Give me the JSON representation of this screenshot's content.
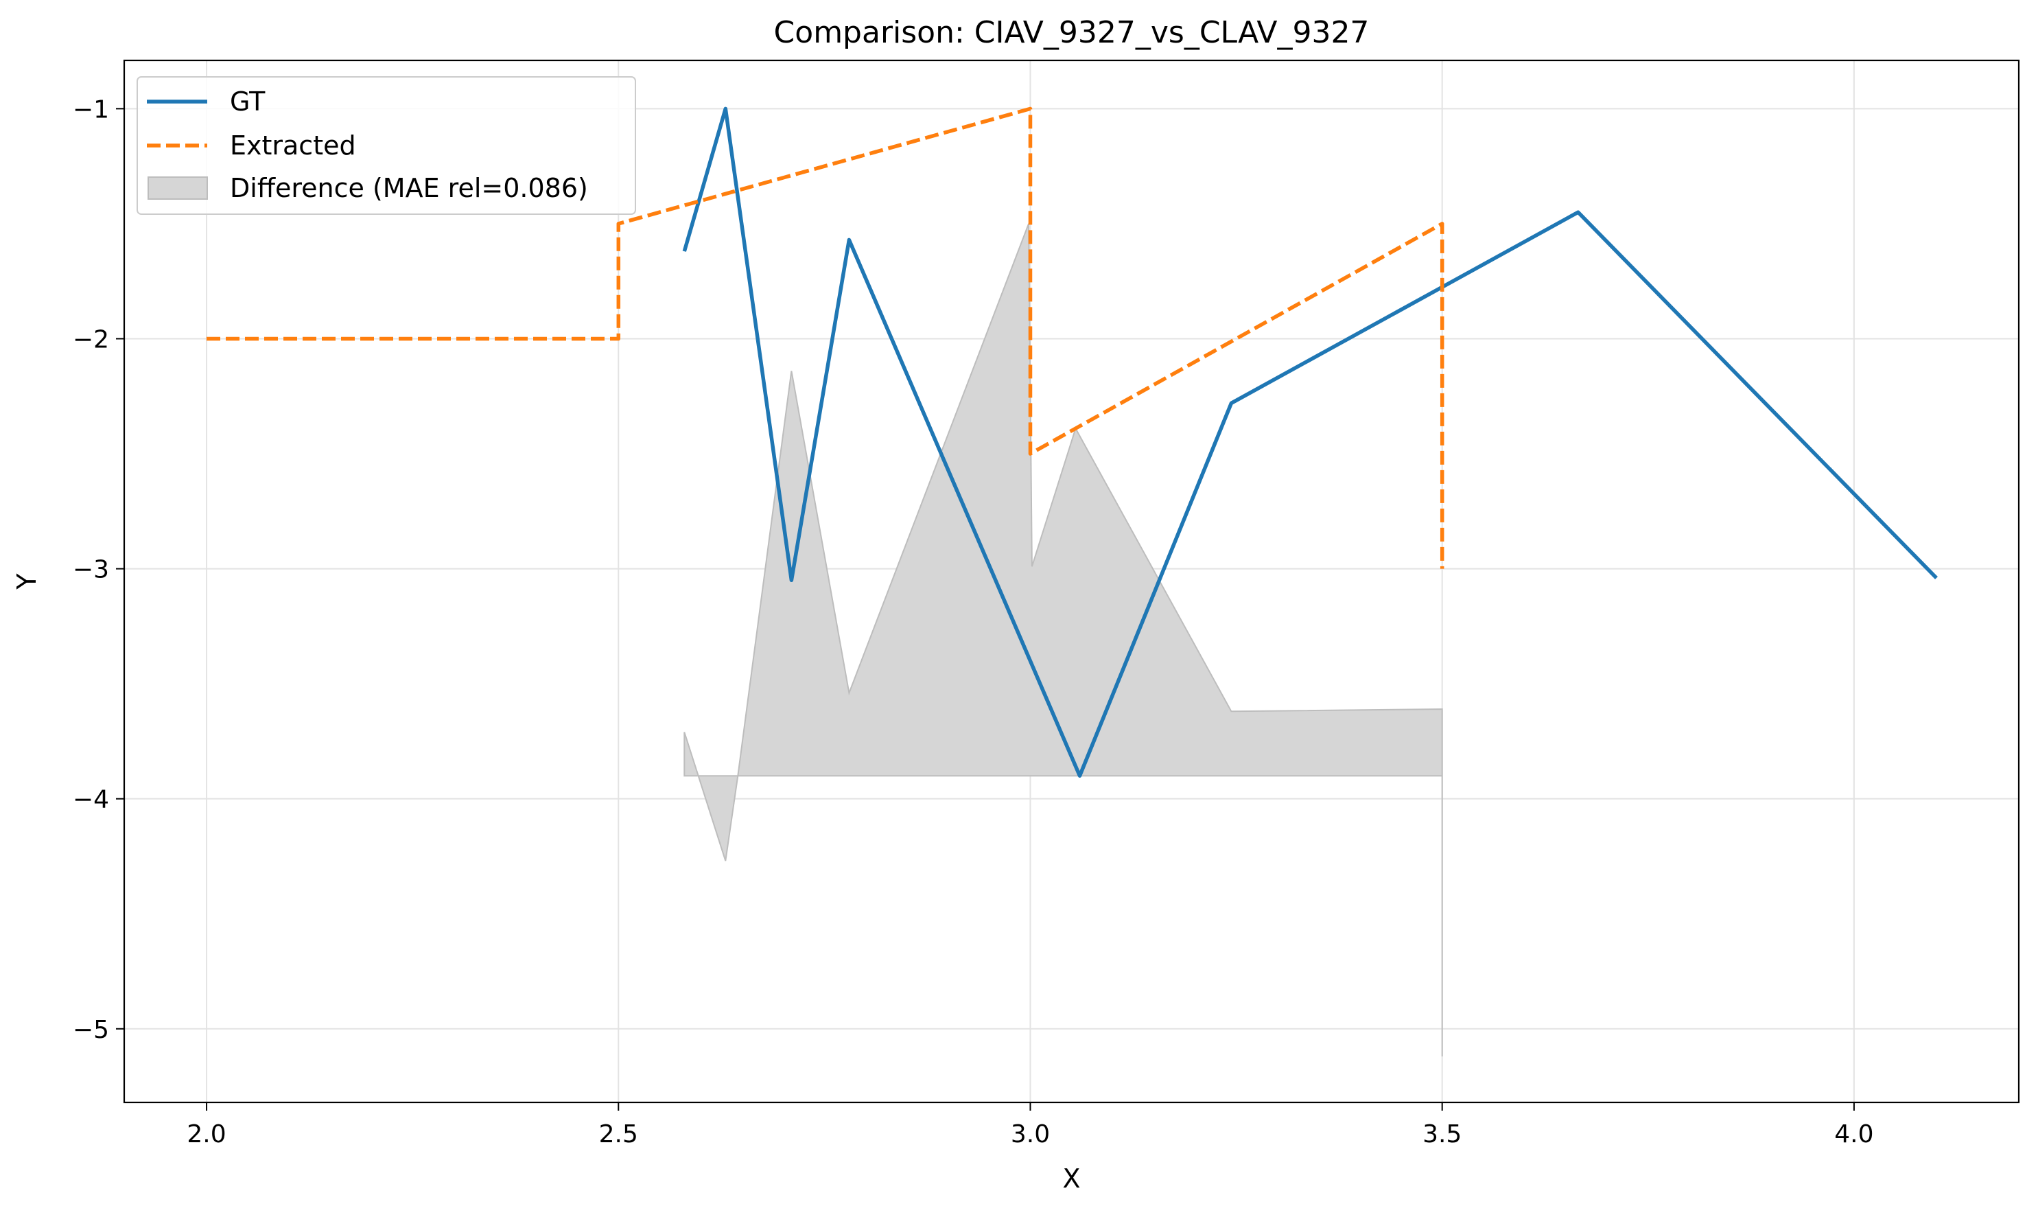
{
  "chart_data": {
    "type": "line",
    "title": "Comparison: CIAV_9327_vs_CLAV_9327",
    "xlabel": "X",
    "ylabel": "Y",
    "xlim": [
      1.9,
      4.2
    ],
    "ylim": [
      -5.32,
      -0.79
    ],
    "xticks": [
      2.0,
      2.5,
      3.0,
      3.5,
      4.0
    ],
    "xtick_labels": [
      "2.0",
      "2.5",
      "3.0",
      "3.5",
      "4.0"
    ],
    "yticks": [
      -1,
      -2,
      -3,
      -4,
      -5
    ],
    "ytick_labels": [
      "−1",
      "−2",
      "−3",
      "−4",
      "−5"
    ],
    "grid": true,
    "legend_position": "top-left",
    "series": [
      {
        "name": "GT",
        "style": "solid",
        "color": "#1f77b4",
        "x": [
          2.58,
          2.63,
          2.71,
          2.78,
          3.06,
          3.244,
          3.665,
          4.1
        ],
        "y": [
          -1.62,
          -1.0,
          -3.05,
          -1.57,
          -3.9,
          -2.28,
          -1.45,
          -3.04
        ]
      },
      {
        "name": "Extracted",
        "style": "dashed",
        "color": "#ff7f0e",
        "x": [
          2.0,
          2.5,
          2.5,
          3.0,
          3.0,
          3.5,
          3.5
        ],
        "y": [
          -2.0,
          -2.0,
          -1.5,
          -1.0,
          -2.5,
          -1.5,
          -3.0
        ]
      }
    ],
    "difference_area": {
      "name": "Difference (MAE rel=0.086)",
      "color": "#d6d6d6",
      "edge_color": "#bdbdbd",
      "x": [
        2.58,
        2.63,
        2.645,
        2.71,
        2.78,
        2.998,
        3.002,
        3.055,
        3.244,
        3.5,
        3.5
      ],
      "y_upper": [
        -3.71,
        -4.27,
        -3.9,
        -2.14,
        -3.54,
        -1.5,
        -2.99,
        -2.39,
        -3.62,
        -3.61,
        -5.12
      ],
      "y_lower": [
        -3.9,
        -3.9,
        -3.9,
        -3.9,
        -3.9,
        -3.9,
        -3.9,
        -3.9,
        -3.9,
        -3.9,
        -3.9
      ]
    }
  }
}
